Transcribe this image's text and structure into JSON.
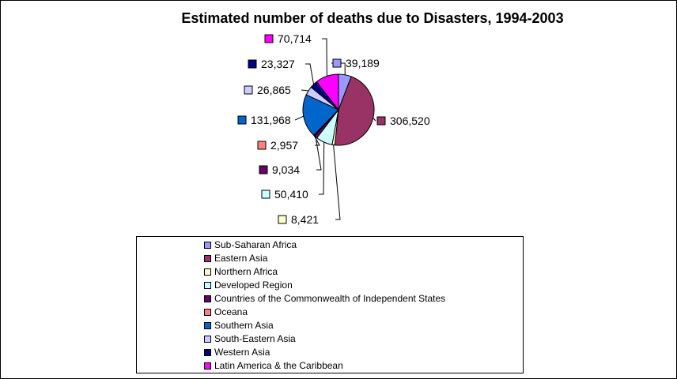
{
  "chart_data": {
    "type": "pie",
    "title": "Estimated number of deaths due to Disasters, 1994-2003",
    "legend_position": "bottom",
    "slices": [
      {
        "name": "Sub-Saharan Africa",
        "value": 39189,
        "label": "39,189",
        "color": "#9999FF"
      },
      {
        "name": "Eastern Asia",
        "value": 306520,
        "label": "306,520",
        "color": "#993366"
      },
      {
        "name": "Northern Africa",
        "value": 8421,
        "label": "8,421",
        "color": "#FFFFCC"
      },
      {
        "name": "Developed Region",
        "value": 50410,
        "label": "50,410",
        "color": "#CCFFFF"
      },
      {
        "name": "Countries of the Commonwealth of Independent States",
        "value": 9034,
        "label": "9,034",
        "color": "#660066"
      },
      {
        "name": "Oceana",
        "value": 2957,
        "label": "2,957",
        "color": "#FF8080"
      },
      {
        "name": "Southern Asia",
        "value": 131968,
        "label": "131,968",
        "color": "#0066CC"
      },
      {
        "name": "South-Eastern Asia",
        "value": 26865,
        "label": "26,865",
        "color": "#CCCCFF"
      },
      {
        "name": "Western Asia",
        "value": 23327,
        "label": "23,327",
        "color": "#000080"
      },
      {
        "name": "Latin America & the Caribbean",
        "value": 70714,
        "label": "70,714",
        "color": "#FF00FF"
      }
    ]
  }
}
